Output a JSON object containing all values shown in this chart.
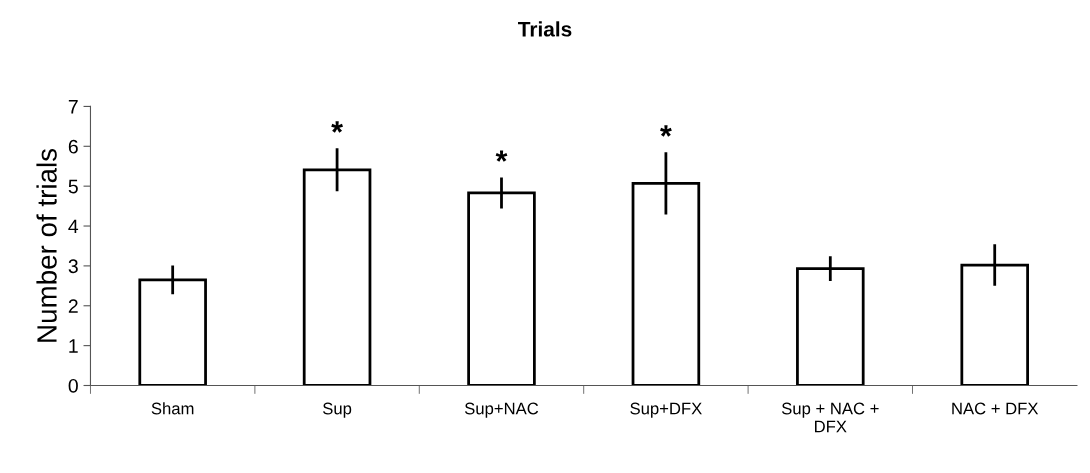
{
  "chart_data": {
    "type": "bar",
    "title": "Trials",
    "ylabel": "Number of trials",
    "categories": [
      "Sham",
      "Sup",
      "Sup+NAC",
      "Sup+DFX",
      "Sup + NAC +\nDFX",
      "NAC + DFX"
    ],
    "values": [
      2.65,
      5.41,
      4.83,
      5.07,
      2.93,
      3.02
    ],
    "errors": [
      0.36,
      0.54,
      0.39,
      0.78,
      0.31,
      0.52
    ],
    "color": "#ffffff",
    "ylim": [
      0,
      7
    ],
    "yticks": [
      0,
      1,
      2,
      3,
      4,
      5,
      6,
      7
    ],
    "grid": false,
    "annotations": [
      {
        "text": "*",
        "x": "Sup",
        "y": 5.95
      },
      {
        "text": "*",
        "x": "Sup+NAC",
        "y": 5.22
      },
      {
        "text": "*",
        "x": "Sup+DFX",
        "y": 5.85
      }
    ]
  }
}
